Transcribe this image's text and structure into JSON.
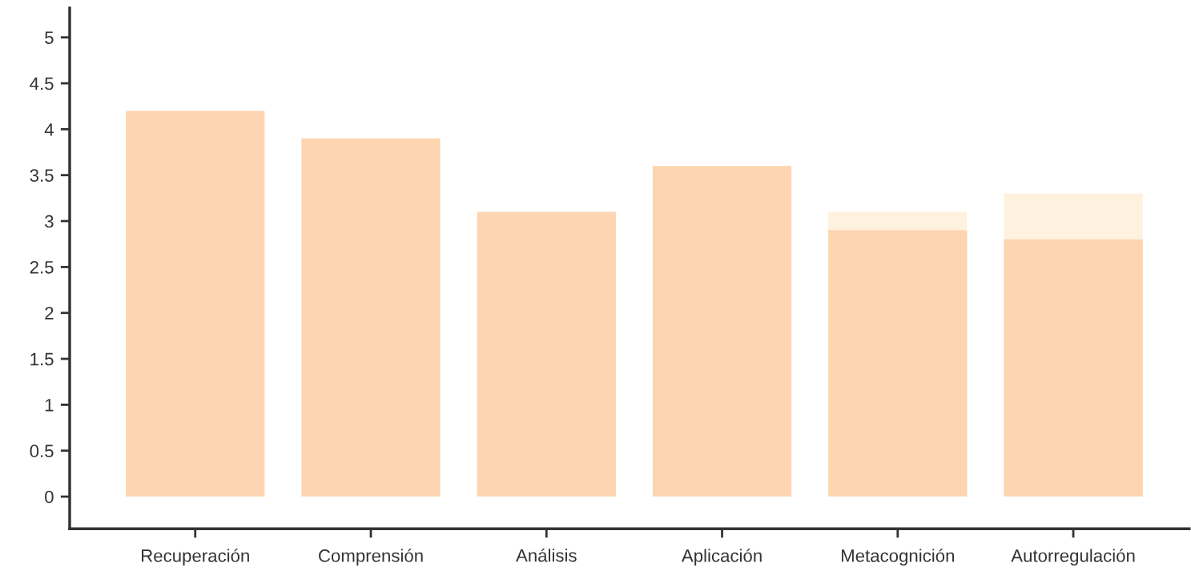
{
  "chart_data": {
    "type": "bar",
    "categories": [
      "Recuperación",
      "Comprensión",
      "Análisis",
      "Aplicación",
      "Metacognición",
      "Autorregulación"
    ],
    "series": [
      {
        "color": "#fef1dd",
        "values": [
          null,
          null,
          null,
          null,
          3.1,
          3.3
        ]
      },
      {
        "color": "#fdd5b0",
        "values": [
          4.2,
          3.9,
          3.1,
          3.6,
          2.9,
          2.8
        ]
      }
    ],
    "ylim": [
      -0.35,
      5.32
    ],
    "yticks": [
      0,
      0.5,
      1,
      1.5,
      2,
      2.5,
      3,
      3.5,
      4,
      4.5,
      5
    ],
    "grid": false,
    "legend": false
  }
}
